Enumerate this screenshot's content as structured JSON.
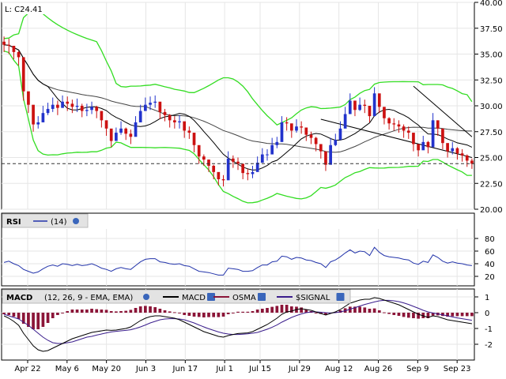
{
  "chart_data": [
    {
      "type": "candlestick",
      "panel": "price",
      "last_label": "L: C24.41",
      "last_value": 24.41,
      "ylim": [
        20,
        40
      ],
      "y_ticks": [
        "40.00",
        "37.50",
        "35.00",
        "32.50",
        "30.00",
        "27.50",
        "25.00",
        "22.50",
        "20.00"
      ],
      "x_ticks": [
        "Apr 22",
        "May 6",
        "May 20",
        "Jun 3",
        "Jun 17",
        "Jul 1",
        "Jul 15",
        "Jul 29",
        "Aug 12",
        "Aug 26",
        "Sep 9",
        "Sep 23"
      ],
      "close": [
        35.9,
        35.8,
        35.2,
        34.7,
        31.4,
        30.1,
        28.2,
        28.4,
        29.3,
        29.7,
        30.1,
        29.8,
        30.4,
        30.2,
        29.9,
        30.0,
        29.5,
        29.6,
        29.9,
        29.5,
        28.6,
        27.8,
        26.6,
        27.4,
        27.8,
        27.3,
        27.0,
        28.4,
        29.5,
        30.1,
        30.3,
        30.4,
        29.4,
        29.1,
        28.6,
        28.4,
        28.5,
        27.6,
        27.4,
        26.2,
        25.1,
        24.8,
        24.2,
        23.6,
        22.9,
        22.8,
        24.9,
        24.6,
        24.4,
        23.5,
        23.4,
        23.6,
        24.5,
        25.3,
        25.3,
        26.2,
        26.5,
        28.4,
        28.3,
        27.6,
        28.0,
        27.9,
        27.2,
        26.9,
        26.3,
        25.6,
        24.3,
        26.2,
        26.7,
        27.8,
        29.2,
        30.5,
        29.6,
        30.1,
        30.0,
        29.0,
        31.2,
        29.9,
        28.8,
        28.3,
        28.2,
        28.0,
        27.6,
        27.4,
        26.3,
        25.7,
        26.5,
        26.0,
        28.6,
        27.8,
        26.4,
        25.6,
        25.9,
        25.4,
        25.2,
        24.7,
        24.4
      ],
      "high": [
        36.7,
        36.5,
        35.8,
        35.3,
        32.1,
        30.7,
        28.9,
        29.0,
        30.0,
        30.3,
        30.8,
        30.5,
        31.0,
        30.9,
        30.6,
        30.7,
        30.2,
        30.2,
        30.4,
        30.0,
        29.2,
        28.4,
        27.3,
        27.9,
        28.5,
        27.9,
        27.7,
        29.0,
        30.1,
        30.8,
        30.9,
        31.0,
        29.9,
        29.7,
        29.2,
        29.0,
        29.1,
        28.2,
        28.0,
        26.9,
        25.7,
        25.3,
        24.8,
        24.3,
        23.5,
        23.3,
        25.6,
        25.2,
        25.0,
        24.0,
        23.9,
        24.2,
        25.1,
        25.9,
        25.8,
        26.9,
        27.0,
        29.0,
        28.9,
        28.2,
        28.7,
        28.5,
        27.8,
        27.5,
        27.0,
        26.2,
        25.0,
        26.9,
        27.3,
        28.5,
        29.9,
        31.2,
        30.2,
        30.8,
        30.6,
        29.6,
        31.8,
        30.5,
        29.4,
        28.9,
        28.8,
        28.6,
        28.2,
        28.0,
        27.0,
        26.3,
        27.1,
        26.6,
        29.3,
        28.4,
        27.1,
        26.2,
        26.5,
        26.0,
        25.8,
        25.3,
        24.9
      ],
      "low": [
        35.2,
        35.0,
        34.5,
        33.9,
        30.5,
        29.3,
        27.5,
        27.8,
        28.6,
        29.1,
        29.4,
        29.1,
        29.8,
        29.5,
        29.3,
        29.4,
        28.9,
        29.0,
        29.2,
        28.8,
        27.9,
        27.1,
        26.0,
        26.8,
        27.2,
        26.7,
        26.3,
        27.8,
        28.8,
        29.5,
        29.6,
        29.8,
        28.7,
        28.5,
        27.9,
        27.8,
        27.8,
        26.9,
        26.8,
        25.5,
        24.4,
        24.2,
        23.6,
        22.9,
        22.3,
        22.2,
        24.2,
        24.0,
        23.8,
        22.9,
        22.8,
        23.0,
        23.8,
        24.7,
        24.7,
        25.5,
        25.9,
        27.7,
        27.6,
        26.9,
        27.4,
        27.3,
        26.6,
        26.3,
        25.6,
        24.9,
        23.7,
        25.5,
        26.1,
        27.1,
        28.6,
        29.8,
        29.0,
        29.5,
        29.3,
        28.4,
        30.6,
        29.3,
        28.2,
        27.7,
        27.6,
        27.4,
        26.9,
        26.8,
        25.6,
        25.1,
        25.8,
        25.4,
        27.9,
        27.1,
        25.8,
        25.0,
        25.3,
        24.8,
        24.6,
        24.1,
        23.9
      ]
    },
    {
      "type": "line",
      "panel": "indicator",
      "title": "RSI",
      "legend": "(14)",
      "y_ticks": [
        80,
        60,
        40,
        20
      ],
      "ylim": [
        5,
        95
      ],
      "values": [
        42,
        44,
        40,
        37,
        31,
        28,
        25,
        27,
        32,
        36,
        38,
        36,
        40,
        39,
        37,
        39,
        37,
        38,
        40,
        37,
        33,
        31,
        28,
        32,
        34,
        32,
        31,
        37,
        43,
        47,
        48,
        48,
        43,
        42,
        40,
        39,
        40,
        37,
        36,
        32,
        28,
        27,
        26,
        24,
        22,
        22,
        33,
        32,
        31,
        28,
        28,
        29,
        34,
        38,
        38,
        43,
        44,
        52,
        51,
        47,
        50,
        49,
        46,
        45,
        42,
        40,
        34,
        43,
        46,
        51,
        57,
        62,
        57,
        60,
        59,
        53,
        66,
        58,
        53,
        51,
        50,
        49,
        47,
        46,
        41,
        39,
        44,
        42,
        54,
        50,
        44,
        41,
        43,
        41,
        40,
        38,
        37
      ]
    },
    {
      "type": "bar+line",
      "panel": "indicator",
      "title": "MACD",
      "legend": "(12, 26, 9 - EMA, EMA)",
      "series_names": [
        "MACD",
        "OSMA",
        "$SIGNAL"
      ],
      "y_ticks": [
        1,
        0,
        -1,
        -2
      ],
      "ylim": [
        -3,
        1.5
      ],
      "macd": [
        -0.2,
        -0.35,
        -0.55,
        -0.8,
        -1.3,
        -1.7,
        -2.1,
        -2.35,
        -2.45,
        -2.4,
        -2.25,
        -2.1,
        -1.95,
        -1.8,
        -1.65,
        -1.55,
        -1.45,
        -1.35,
        -1.25,
        -1.2,
        -1.15,
        -1.1,
        -1.12,
        -1.1,
        -1.05,
        -1.0,
        -0.9,
        -0.7,
        -0.5,
        -0.35,
        -0.25,
        -0.2,
        -0.2,
        -0.25,
        -0.3,
        -0.35,
        -0.45,
        -0.6,
        -0.75,
        -0.9,
        -1.05,
        -1.2,
        -1.3,
        -1.4,
        -1.5,
        -1.55,
        -1.45,
        -1.38,
        -1.32,
        -1.3,
        -1.28,
        -1.2,
        -1.05,
        -0.9,
        -0.75,
        -0.55,
        -0.35,
        -0.1,
        0.05,
        0.1,
        0.2,
        0.25,
        0.2,
        0.15,
        0.05,
        -0.05,
        -0.15,
        -0.05,
        0.05,
        0.2,
        0.4,
        0.6,
        0.7,
        0.8,
        0.85,
        0.85,
        0.95,
        0.9,
        0.8,
        0.7,
        0.6,
        0.5,
        0.35,
        0.2,
        0.05,
        -0.1,
        -0.2,
        -0.3,
        -0.2,
        -0.25,
        -0.35,
        -0.45,
        -0.5,
        -0.55,
        -0.6,
        -0.65,
        -0.7
      ],
      "signal": [
        -0.1,
        -0.2,
        -0.3,
        -0.4,
        -0.6,
        -0.8,
        -1.05,
        -1.3,
        -1.55,
        -1.75,
        -1.9,
        -1.95,
        -1.95,
        -1.9,
        -1.85,
        -1.75,
        -1.65,
        -1.55,
        -1.5,
        -1.42,
        -1.35,
        -1.28,
        -1.22,
        -1.18,
        -1.15,
        -1.12,
        -1.08,
        -1.0,
        -0.9,
        -0.78,
        -0.65,
        -0.55,
        -0.45,
        -0.4,
        -0.38,
        -0.38,
        -0.4,
        -0.45,
        -0.55,
        -0.65,
        -0.78,
        -0.9,
        -1.02,
        -1.12,
        -1.22,
        -1.3,
        -1.35,
        -1.38,
        -1.38,
        -1.36,
        -1.34,
        -1.3,
        -1.25,
        -1.15,
        -1.05,
        -0.92,
        -0.78,
        -0.6,
        -0.45,
        -0.3,
        -0.18,
        -0.08,
        0.0,
        0.05,
        0.05,
        0.03,
        0.0,
        -0.02,
        0.0,
        0.05,
        0.12,
        0.22,
        0.32,
        0.42,
        0.52,
        0.6,
        0.68,
        0.75,
        0.78,
        0.78,
        0.75,
        0.7,
        0.62,
        0.52,
        0.4,
        0.28,
        0.15,
        0.05,
        -0.02,
        -0.08,
        -0.14,
        -0.2,
        -0.27,
        -0.33,
        -0.38,
        -0.43,
        -0.48
      ],
      "colors": {
        "macd": "#000000",
        "osma": "#8b1538",
        "signal": "#3a1d8c"
      }
    }
  ]
}
